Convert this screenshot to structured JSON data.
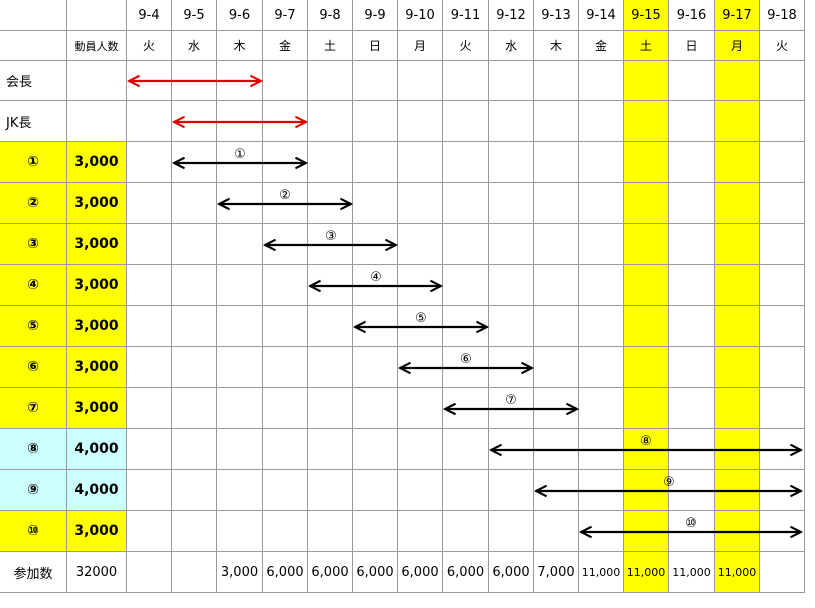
{
  "colors": {
    "grid": "#9a9a9a",
    "highlight": "#ffff00",
    "light_blue": "#ccffff",
    "arrow_black": "#000000",
    "arrow_red": "#e00000"
  },
  "header": {
    "count_label": "動員人数",
    "dates": [
      "9-4",
      "9-5",
      "9-6",
      "9-7",
      "9-8",
      "9-9",
      "9-10",
      "9-11",
      "9-12",
      "9-13",
      "9-14",
      "9-15",
      "9-16",
      "9-17",
      "9-18"
    ],
    "weekdays": [
      "火",
      "水",
      "木",
      "金",
      "土",
      "日",
      "月",
      "火",
      "水",
      "木",
      "金",
      "土",
      "日",
      "月",
      "火"
    ],
    "highlight_columns": [
      11,
      13
    ]
  },
  "rows": [
    {
      "label": "会長",
      "count": "",
      "fill": "none",
      "arrow": {
        "from": 0,
        "to": 3,
        "color": "red",
        "label": ""
      }
    },
    {
      "label": "JK長",
      "count": "",
      "fill": "none",
      "arrow": {
        "from": 1,
        "to": 4,
        "color": "red",
        "label": ""
      }
    },
    {
      "label": "①",
      "count": "3,000",
      "fill": "yellow",
      "arrow": {
        "from": 1,
        "to": 4,
        "color": "black",
        "label": "①"
      }
    },
    {
      "label": "②",
      "count": "3,000",
      "fill": "yellow",
      "arrow": {
        "from": 2,
        "to": 5,
        "color": "black",
        "label": "②"
      }
    },
    {
      "label": "③",
      "count": "3,000",
      "fill": "yellow",
      "arrow": {
        "from": 3,
        "to": 6,
        "color": "black",
        "label": "③"
      }
    },
    {
      "label": "④",
      "count": "3,000",
      "fill": "yellow",
      "arrow": {
        "from": 4,
        "to": 7,
        "color": "black",
        "label": "④"
      }
    },
    {
      "label": "⑤",
      "count": "3,000",
      "fill": "yellow",
      "arrow": {
        "from": 5,
        "to": 8,
        "color": "black",
        "label": "⑤"
      }
    },
    {
      "label": "⑥",
      "count": "3,000",
      "fill": "yellow",
      "arrow": {
        "from": 6,
        "to": 9,
        "color": "black",
        "label": "⑥"
      }
    },
    {
      "label": "⑦",
      "count": "3,000",
      "fill": "yellow",
      "arrow": {
        "from": 7,
        "to": 10,
        "color": "black",
        "label": "⑦"
      }
    },
    {
      "label": "⑧",
      "count": "4,000",
      "fill": "blue",
      "arrow": {
        "from": 8,
        "to": 15,
        "color": "black",
        "label": "⑧"
      }
    },
    {
      "label": "⑨",
      "count": "4,000",
      "fill": "blue",
      "arrow": {
        "from": 9,
        "to": 15,
        "color": "black",
        "label": "⑨"
      }
    },
    {
      "label": "⑩",
      "count": "3,000",
      "fill": "yellow",
      "arrow": {
        "from": 10,
        "to": 15,
        "color": "black",
        "label": "⑩"
      }
    }
  ],
  "total": {
    "label": "参加数",
    "count": "32000",
    "values": [
      "",
      "",
      "3,000",
      "6,000",
      "6,000",
      "6,000",
      "6,000",
      "6,000",
      "6,000",
      "7,000",
      "11,000",
      "11,000",
      "11,000",
      "11,000",
      ""
    ]
  }
}
